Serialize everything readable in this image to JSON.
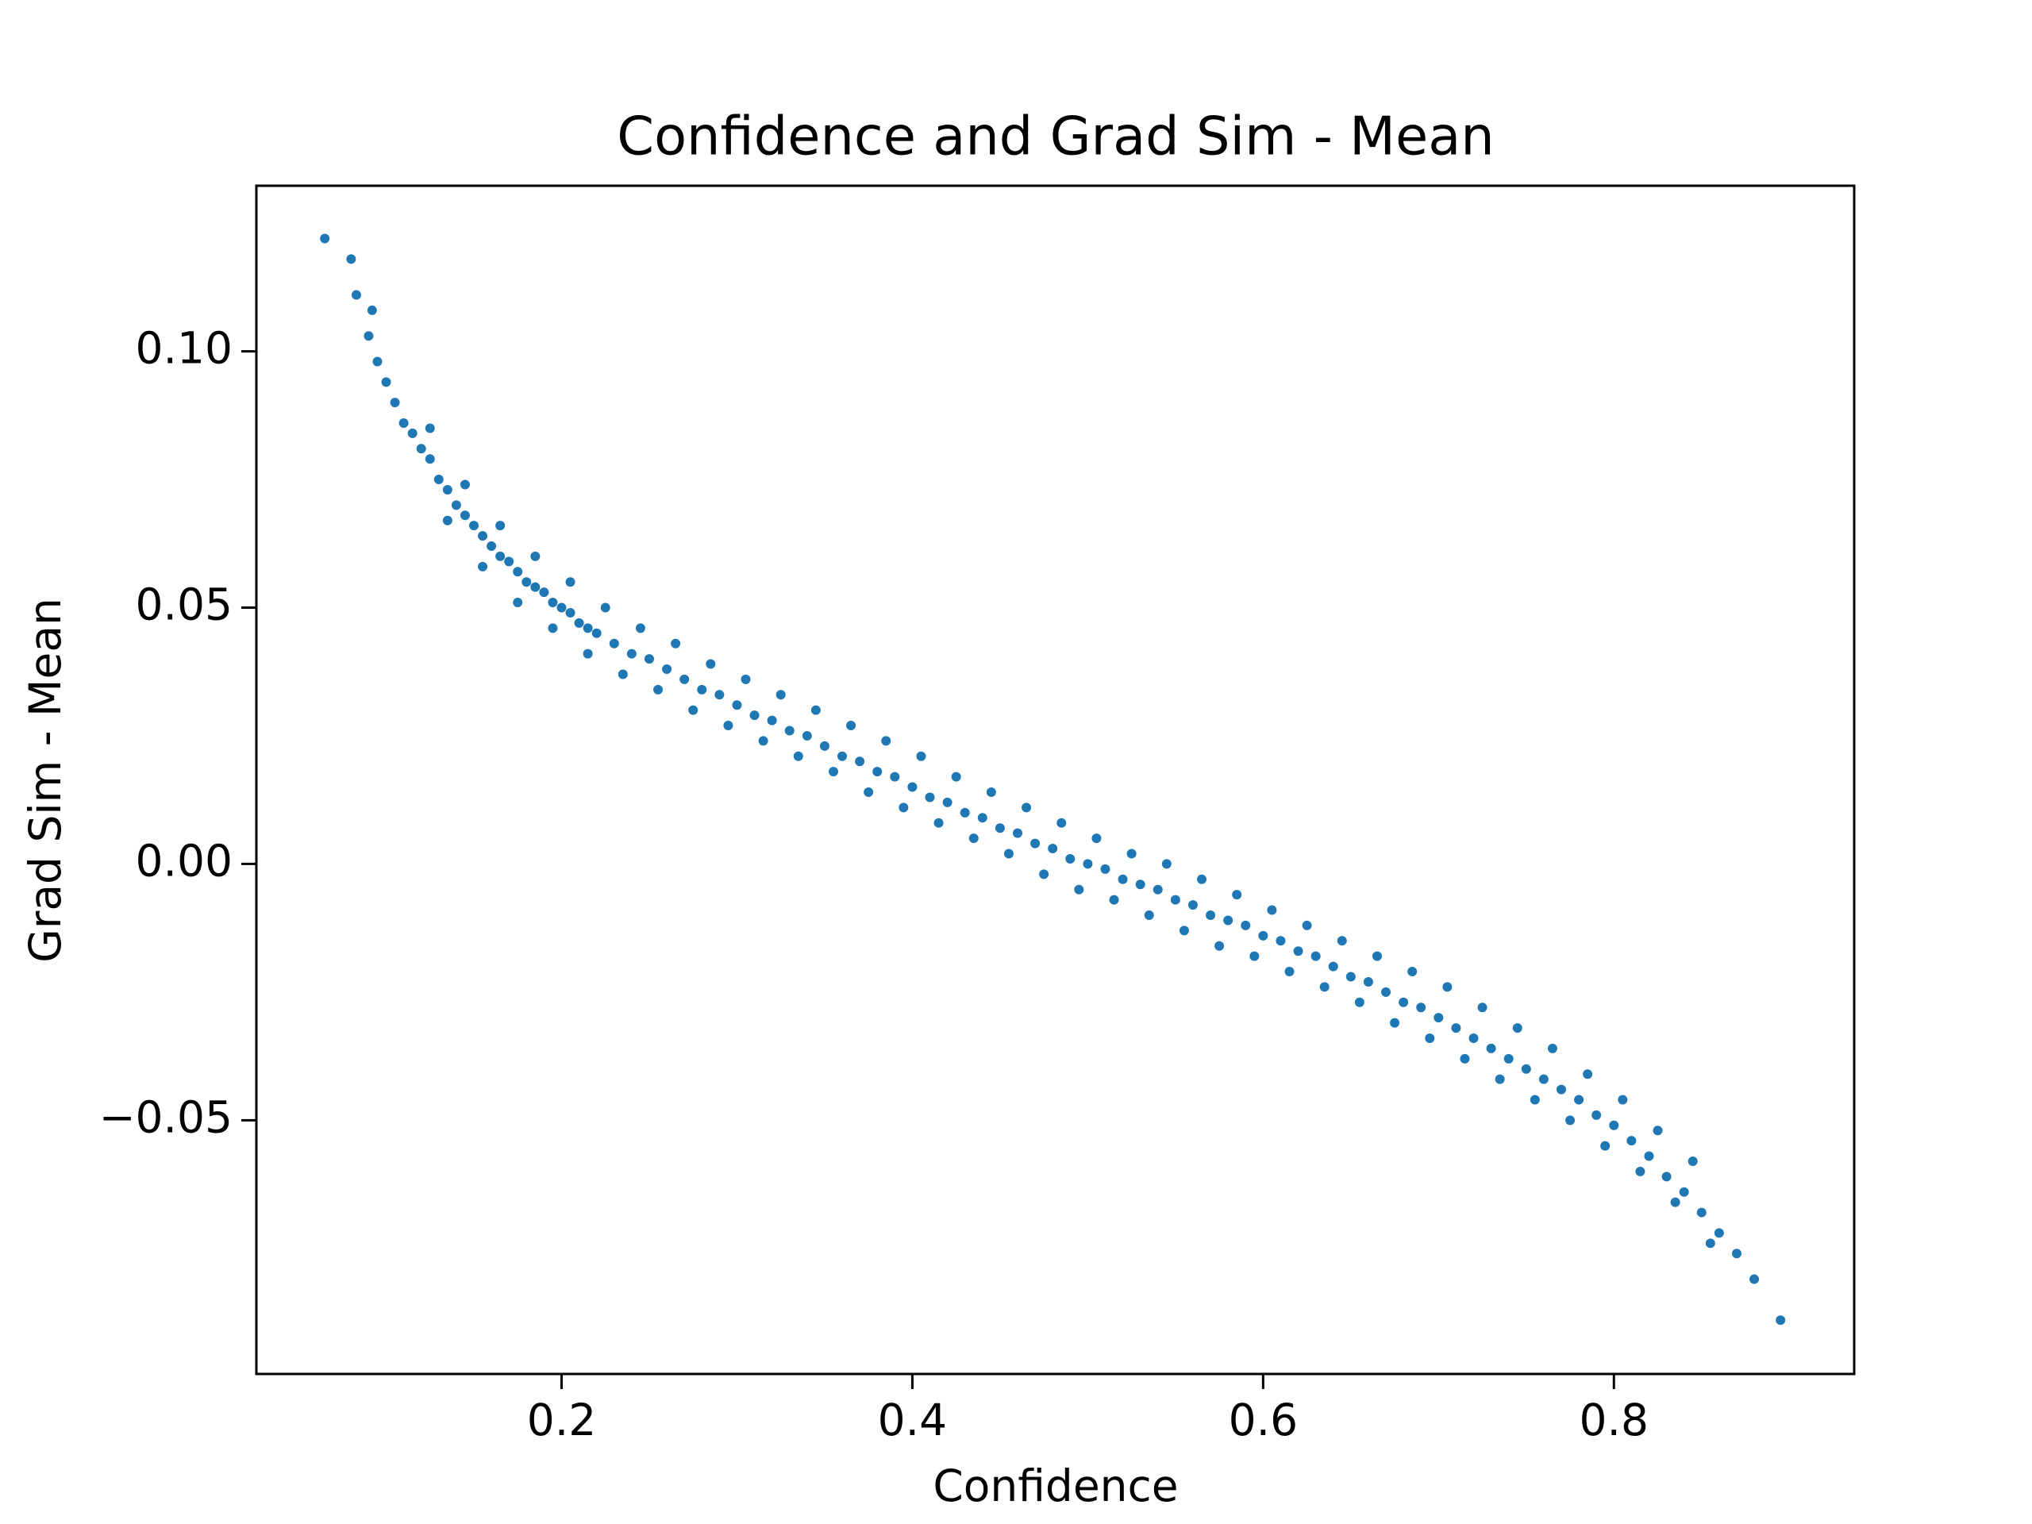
{
  "chart_data": {
    "type": "scatter",
    "title": "Confidence and Grad Sim - Mean",
    "x_label": "Confidence",
    "y_label": "Grad Sim - Mean",
    "color": "#1f77b4",
    "xlim": [
      0.026,
      0.937
    ],
    "ylim": [
      -0.0995,
      0.1323
    ],
    "xticks": [
      0.2,
      0.4,
      0.6,
      0.8
    ],
    "yticks": [
      {
        "value": -0.05,
        "label": "−0.05"
      },
      {
        "value": 0,
        "label": "0.00"
      },
      0.05,
      {
        "value": 0.1,
        "label": "0.10"
      }
    ],
    "x": [
      0.065,
      0.08,
      0.083,
      0.09,
      0.092,
      0.095,
      0.1,
      0.105,
      0.11,
      0.115,
      0.12,
      0.125,
      0.13,
      0.135,
      0.14,
      0.145,
      0.15,
      0.155,
      0.16,
      0.165,
      0.17,
      0.175,
      0.18,
      0.185,
      0.19,
      0.195,
      0.2,
      0.205,
      0.21,
      0.215,
      0.22,
      0.23,
      0.24,
      0.25,
      0.26,
      0.27,
      0.28,
      0.29,
      0.3,
      0.31,
      0.32,
      0.33,
      0.34,
      0.35,
      0.36,
      0.37,
      0.38,
      0.39,
      0.4,
      0.41,
      0.42,
      0.43,
      0.44,
      0.45,
      0.46,
      0.47,
      0.48,
      0.49,
      0.5,
      0.51,
      0.52,
      0.53,
      0.54,
      0.55,
      0.56,
      0.57,
      0.58,
      0.59,
      0.6,
      0.61,
      0.62,
      0.63,
      0.64,
      0.65,
      0.66,
      0.67,
      0.68,
      0.69,
      0.7,
      0.71,
      0.72,
      0.73,
      0.74,
      0.75,
      0.76,
      0.77,
      0.78,
      0.79,
      0.8,
      0.81,
      0.82,
      0.83,
      0.84,
      0.85,
      0.86,
      0.87,
      0.88,
      0.895,
      0.125,
      0.145,
      0.165,
      0.185,
      0.205,
      0.225,
      0.245,
      0.265,
      0.285,
      0.305,
      0.325,
      0.345,
      0.365,
      0.385,
      0.405,
      0.425,
      0.445,
      0.465,
      0.485,
      0.505,
      0.525,
      0.545,
      0.565,
      0.585,
      0.605,
      0.625,
      0.645,
      0.665,
      0.685,
      0.705,
      0.725,
      0.745,
      0.765,
      0.785,
      0.805,
      0.825,
      0.845,
      0.135,
      0.155,
      0.175,
      0.195,
      0.215,
      0.235,
      0.255,
      0.275,
      0.295,
      0.315,
      0.335,
      0.355,
      0.375,
      0.395,
      0.415,
      0.435,
      0.455,
      0.475,
      0.495,
      0.515,
      0.535,
      0.555,
      0.575,
      0.595,
      0.615,
      0.635,
      0.655,
      0.675,
      0.695,
      0.715,
      0.735,
      0.755,
      0.775,
      0.795,
      0.815,
      0.835,
      0.855
    ],
    "values": [
      0.122,
      0.118,
      0.111,
      0.103,
      0.108,
      0.098,
      0.094,
      0.09,
      0.086,
      0.084,
      0.081,
      0.079,
      0.075,
      0.073,
      0.07,
      0.068,
      0.066,
      0.064,
      0.062,
      0.06,
      0.059,
      0.057,
      0.055,
      0.054,
      0.053,
      0.051,
      0.05,
      0.049,
      0.047,
      0.046,
      0.045,
      0.043,
      0.041,
      0.04,
      0.038,
      0.036,
      0.034,
      0.033,
      0.031,
      0.029,
      0.028,
      0.026,
      0.025,
      0.023,
      0.021,
      0.02,
      0.018,
      0.017,
      0.015,
      0.013,
      0.012,
      0.01,
      0.009,
      0.007,
      0.006,
      0.004,
      0.003,
      0.001,
      0,
      -0.001,
      -0.003,
      -0.004,
      -0.005,
      -0.007,
      -0.008,
      -0.01,
      -0.011,
      -0.012,
      -0.014,
      -0.015,
      -0.017,
      -0.018,
      -0.02,
      -0.022,
      -0.023,
      -0.025,
      -0.027,
      -0.028,
      -0.03,
      -0.032,
      -0.034,
      -0.036,
      -0.038,
      -0.04,
      -0.042,
      -0.044,
      -0.046,
      -0.049,
      -0.051,
      -0.054,
      -0.057,
      -0.061,
      -0.064,
      -0.068,
      -0.072,
      -0.076,
      -0.081,
      -0.089,
      0.085,
      0.074,
      0.066,
      0.06,
      0.055,
      0.05,
      0.046,
      0.043,
      0.039,
      0.036,
      0.033,
      0.03,
      0.027,
      0.024,
      0.021,
      0.017,
      0.014,
      0.011,
      0.008,
      0.005,
      0.002,
      0,
      -0.003,
      -0.006,
      -0.009,
      -0.012,
      -0.015,
      -0.018,
      -0.021,
      -0.024,
      -0.028,
      -0.032,
      -0.036,
      -0.041,
      -0.046,
      -0.052,
      -0.058,
      0.067,
      0.058,
      0.051,
      0.046,
      0.041,
      0.037,
      0.034,
      0.03,
      0.027,
      0.024,
      0.021,
      0.018,
      0.014,
      0.011,
      0.008,
      0.005,
      0.002,
      -0.002,
      -0.005,
      -0.007,
      -0.01,
      -0.013,
      -0.016,
      -0.018,
      -0.021,
      -0.024,
      -0.027,
      -0.031,
      -0.034,
      -0.038,
      -0.042,
      -0.046,
      -0.05,
      -0.055,
      -0.06,
      -0.066,
      -0.074
    ]
  }
}
